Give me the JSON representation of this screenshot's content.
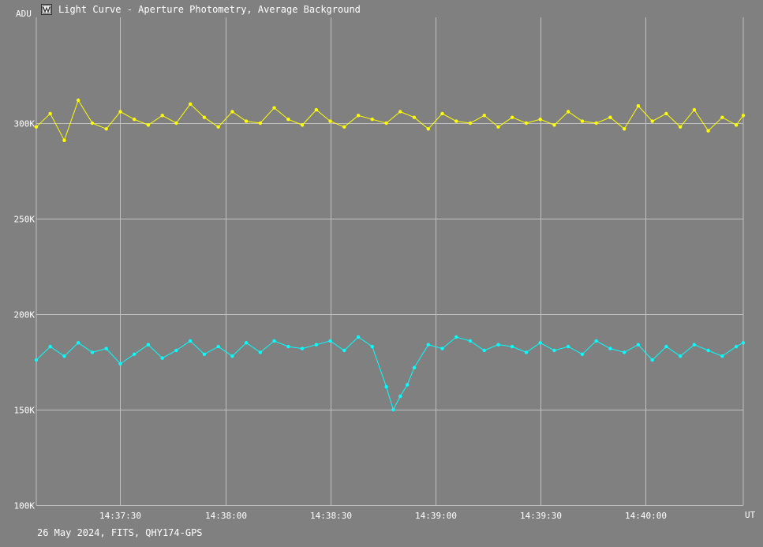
{
  "window": {
    "title": "Light Curve - Aperture Photometry, Average Background",
    "icon": "light-curve-app-icon"
  },
  "footer": {
    "text": "26 May 2024, FITS, QHY174-GPS"
  },
  "colors": {
    "background": "#808080",
    "grid": "#c0c0c0",
    "series_yellow": "#ffff00",
    "series_cyan": "#00ffff"
  },
  "chart_data": {
    "type": "line",
    "title": "Light Curve - Aperture Photometry, Average Background",
    "xlabel": "UT",
    "ylabel": "ADU",
    "x_range": [
      "14:37:06",
      "14:40:28"
    ],
    "ylim": [
      100000,
      350000
    ],
    "grid": true,
    "y_ticks": [
      {
        "value": 100000,
        "label": "100K"
      },
      {
        "value": 150000,
        "label": "150K"
      },
      {
        "value": 200000,
        "label": "200K"
      },
      {
        "value": 250000,
        "label": "250K"
      },
      {
        "value": 300000,
        "label": "300K"
      }
    ],
    "x_ticks": [
      {
        "time": "14:37:30",
        "label": "14:37:30"
      },
      {
        "time": "14:38:00",
        "label": "14:38:00"
      },
      {
        "time": "14:38:30",
        "label": "14:38:30"
      },
      {
        "time": "14:39:00",
        "label": "14:39:00"
      },
      {
        "time": "14:39:30",
        "label": "14:39:30"
      },
      {
        "time": "14:40:00",
        "label": "14:40:00"
      }
    ],
    "series": [
      {
        "color": "#ffff00",
        "x": [
          "14:37:06",
          "14:37:10",
          "14:37:14",
          "14:37:18",
          "14:37:22",
          "14:37:26",
          "14:37:30",
          "14:37:34",
          "14:37:38",
          "14:37:42",
          "14:37:46",
          "14:37:50",
          "14:37:54",
          "14:37:58",
          "14:38:02",
          "14:38:06",
          "14:38:10",
          "14:38:14",
          "14:38:18",
          "14:38:22",
          "14:38:26",
          "14:38:30",
          "14:38:34",
          "14:38:38",
          "14:38:42",
          "14:38:46",
          "14:38:50",
          "14:38:54",
          "14:38:58",
          "14:39:02",
          "14:39:06",
          "14:39:10",
          "14:39:14",
          "14:39:18",
          "14:39:22",
          "14:39:26",
          "14:39:30",
          "14:39:34",
          "14:39:38",
          "14:39:42",
          "14:39:46",
          "14:39:50",
          "14:39:54",
          "14:39:58",
          "14:40:02",
          "14:40:06",
          "14:40:10",
          "14:40:14",
          "14:40:18",
          "14:40:22",
          "14:40:26",
          "14:40:28"
        ],
        "y": [
          298000,
          305000,
          291000,
          312000,
          300000,
          297000,
          306000,
          302000,
          299000,
          304000,
          300000,
          310000,
          303000,
          298000,
          306000,
          301000,
          300000,
          308000,
          302000,
          299000,
          307000,
          301000,
          298000,
          304000,
          302000,
          300000,
          306000,
          303000,
          297000,
          305000,
          301000,
          300000,
          304000,
          298000,
          303000,
          300000,
          302000,
          299000,
          306000,
          301000,
          300000,
          303000,
          297000,
          309000,
          301000,
          305000,
          298000,
          307000,
          296000,
          303000,
          299000,
          304000
        ]
      },
      {
        "color": "#00ffff",
        "x": [
          "14:37:06",
          "14:37:10",
          "14:37:14",
          "14:37:18",
          "14:37:22",
          "14:37:26",
          "14:37:30",
          "14:37:34",
          "14:37:38",
          "14:37:42",
          "14:37:46",
          "14:37:50",
          "14:37:54",
          "14:37:58",
          "14:38:02",
          "14:38:06",
          "14:38:10",
          "14:38:14",
          "14:38:18",
          "14:38:22",
          "14:38:26",
          "14:38:30",
          "14:38:34",
          "14:38:38",
          "14:38:42",
          "14:38:46",
          "14:38:48",
          "14:38:50",
          "14:38:52",
          "14:38:54",
          "14:38:58",
          "14:39:02",
          "14:39:06",
          "14:39:10",
          "14:39:14",
          "14:39:18",
          "14:39:22",
          "14:39:26",
          "14:39:30",
          "14:39:34",
          "14:39:38",
          "14:39:42",
          "14:39:46",
          "14:39:50",
          "14:39:54",
          "14:39:58",
          "14:40:02",
          "14:40:06",
          "14:40:10",
          "14:40:14",
          "14:40:18",
          "14:40:22",
          "14:40:26",
          "14:40:28"
        ],
        "y": [
          176000,
          183000,
          178000,
          185000,
          180000,
          182000,
          174000,
          179000,
          184000,
          177000,
          181000,
          186000,
          179000,
          183000,
          178000,
          185000,
          180000,
          186000,
          183000,
          182000,
          184000,
          186000,
          181000,
          188000,
          183000,
          162000,
          150000,
          157000,
          163000,
          172000,
          184000,
          182000,
          188000,
          186000,
          181000,
          184000,
          183000,
          180000,
          185000,
          181000,
          183000,
          179000,
          186000,
          182000,
          180000,
          184000,
          176000,
          183000,
          178000,
          184000,
          181000,
          178000,
          183000,
          185000
        ]
      }
    ]
  },
  "axis": {
    "ylabel": "ADU",
    "xunit": "UT"
  }
}
